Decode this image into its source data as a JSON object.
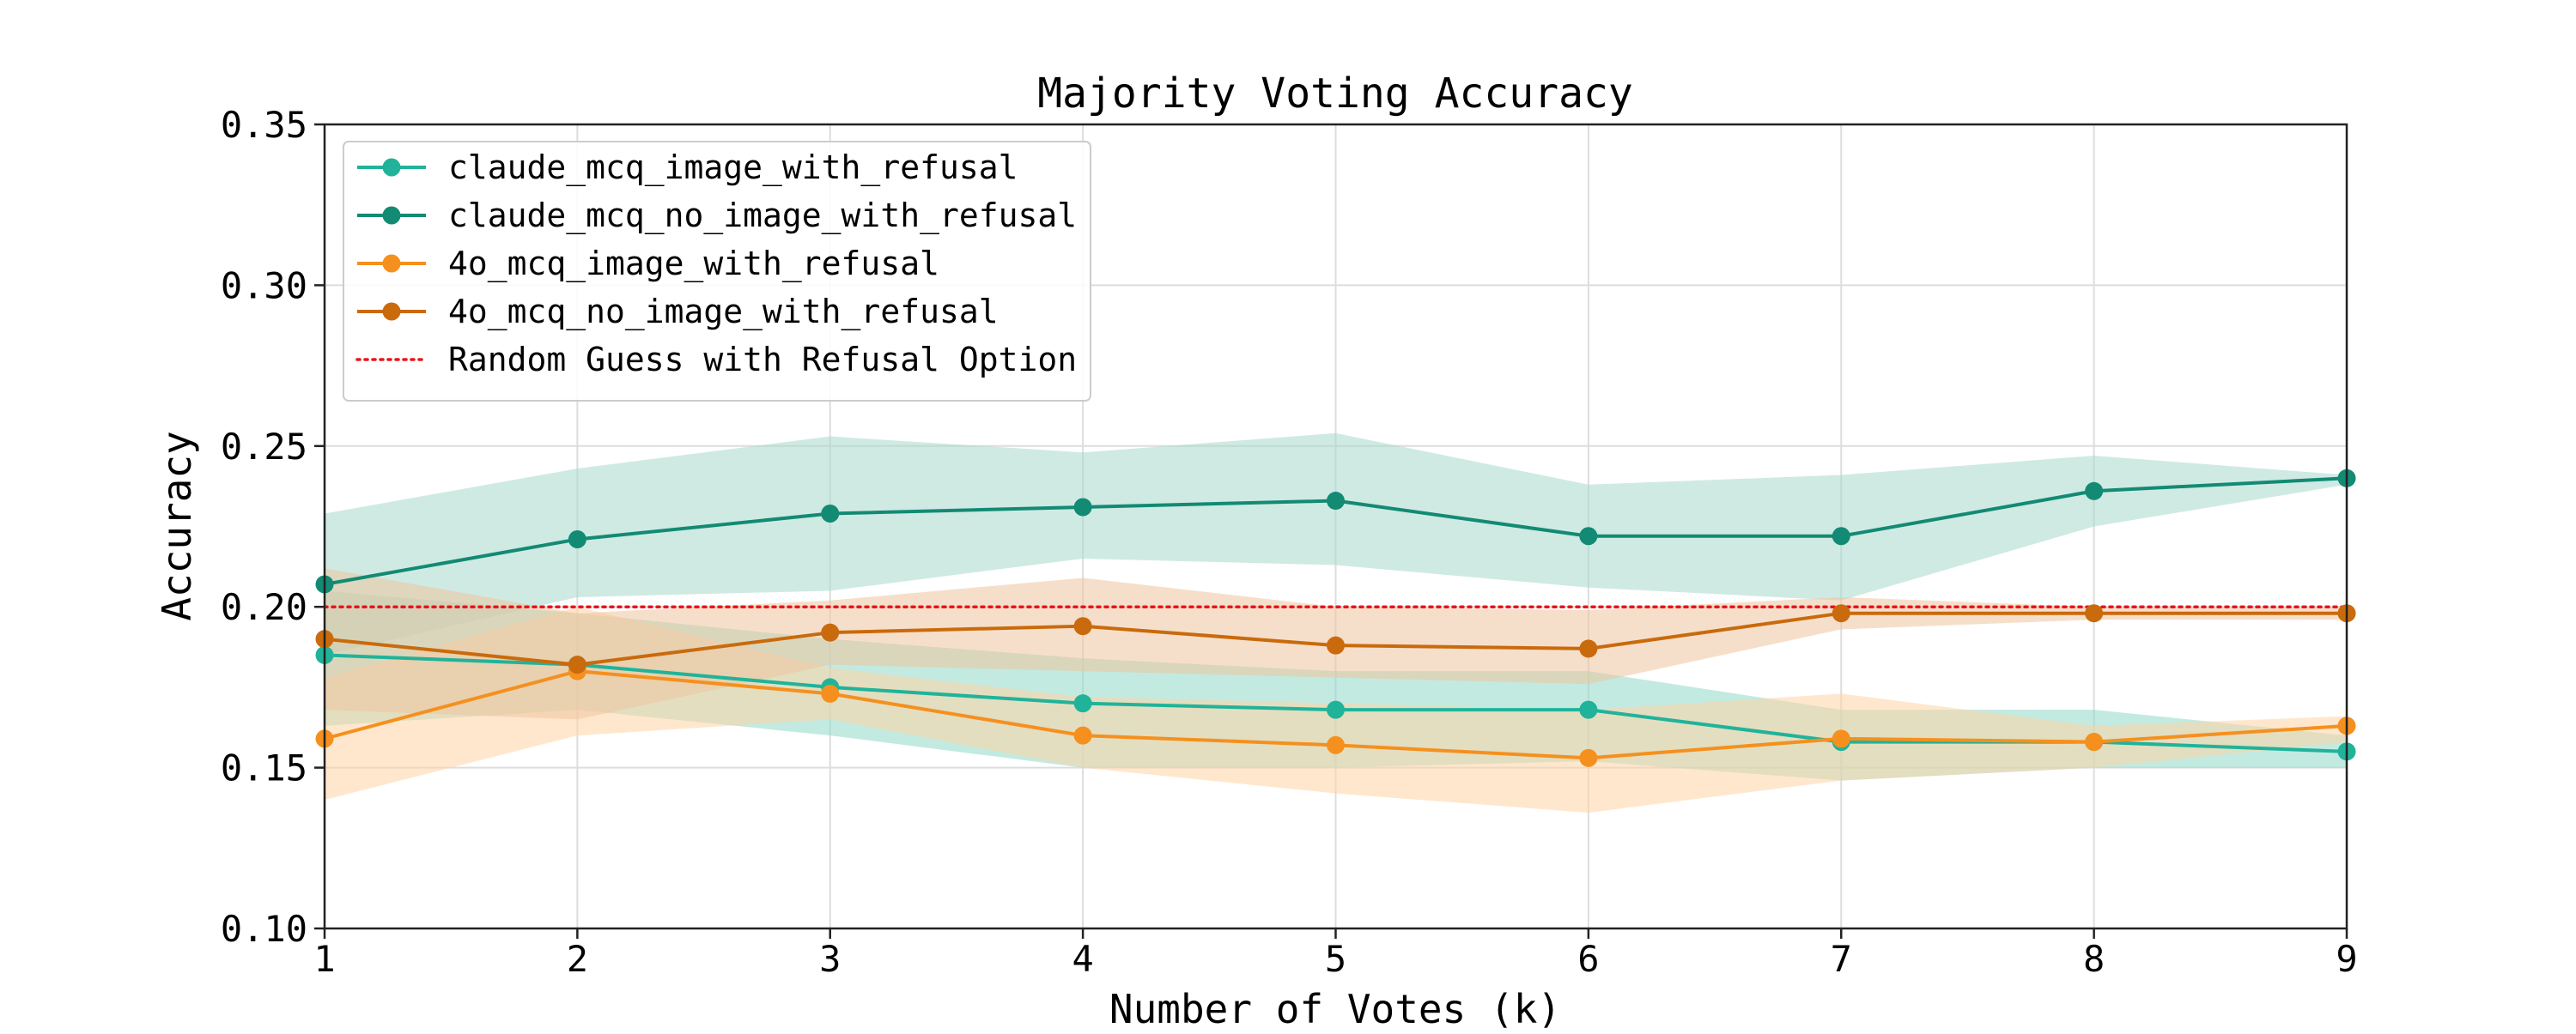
{
  "chart_data": {
    "type": "line",
    "title": "Majority Voting Accuracy",
    "xlabel": "Number of Votes (k)",
    "ylabel": "Accuracy",
    "xlim": [
      1,
      9
    ],
    "ylim": [
      0.1,
      0.35
    ],
    "x": [
      1,
      2,
      3,
      4,
      5,
      6,
      7,
      8,
      9
    ],
    "xticks": [
      "1",
      "2",
      "3",
      "4",
      "5",
      "6",
      "7",
      "8",
      "9"
    ],
    "yticks": [
      "0.10",
      "0.15",
      "0.20",
      "0.25",
      "0.30",
      "0.35"
    ],
    "grid": true,
    "legend_position": "top-left",
    "series": [
      {
        "name": "claude_mcq_image_with_refusal",
        "color": "#20b39a",
        "band_color": "#8fd9c9",
        "values": [
          0.185,
          0.182,
          0.175,
          0.17,
          0.168,
          0.168,
          0.158,
          0.158,
          0.155
        ],
        "lower": [
          0.163,
          0.168,
          0.16,
          0.15,
          0.15,
          0.152,
          0.146,
          0.15,
          0.15
        ],
        "upper": [
          0.205,
          0.198,
          0.19,
          0.184,
          0.18,
          0.18,
          0.168,
          0.168,
          0.16
        ]
      },
      {
        "name": "claude_mcq_no_image_with_refusal",
        "color": "#128a74",
        "band_color": "#a7d8cc",
        "values": [
          0.207,
          0.221,
          0.229,
          0.231,
          0.233,
          0.222,
          0.222,
          0.236,
          0.24
        ],
        "lower": [
          0.185,
          0.203,
          0.205,
          0.215,
          0.213,
          0.206,
          0.202,
          0.225,
          0.238
        ],
        "upper": [
          0.229,
          0.243,
          0.253,
          0.248,
          0.254,
          0.238,
          0.241,
          0.247,
          0.241
        ]
      },
      {
        "name": "4o_mcq_image_with_refusal",
        "color": "#f5901e",
        "band_color": "#ffd3a6",
        "values": [
          0.159,
          0.18,
          0.173,
          0.16,
          0.157,
          0.153,
          0.159,
          0.158,
          0.163
        ],
        "lower": [
          0.14,
          0.16,
          0.165,
          0.15,
          0.142,
          0.136,
          0.146,
          0.15,
          0.158
        ],
        "upper": [
          0.178,
          0.2,
          0.181,
          0.172,
          0.17,
          0.168,
          0.173,
          0.163,
          0.166
        ]
      },
      {
        "name": "4o_mcq_no_image_with_refusal",
        "color": "#c96a0c",
        "band_color": "#efc49e",
        "values": [
          0.19,
          0.182,
          0.192,
          0.194,
          0.188,
          0.187,
          0.198,
          0.198,
          0.198
        ],
        "lower": [
          0.168,
          0.165,
          0.182,
          0.18,
          0.178,
          0.176,
          0.193,
          0.196,
          0.196
        ],
        "upper": [
          0.212,
          0.198,
          0.202,
          0.209,
          0.2,
          0.199,
          0.203,
          0.2,
          0.2
        ]
      }
    ],
    "reference_line": {
      "name": "Random Guess with Refusal Option",
      "y": 0.2,
      "color": "#e8141c",
      "style": "dotted"
    }
  }
}
